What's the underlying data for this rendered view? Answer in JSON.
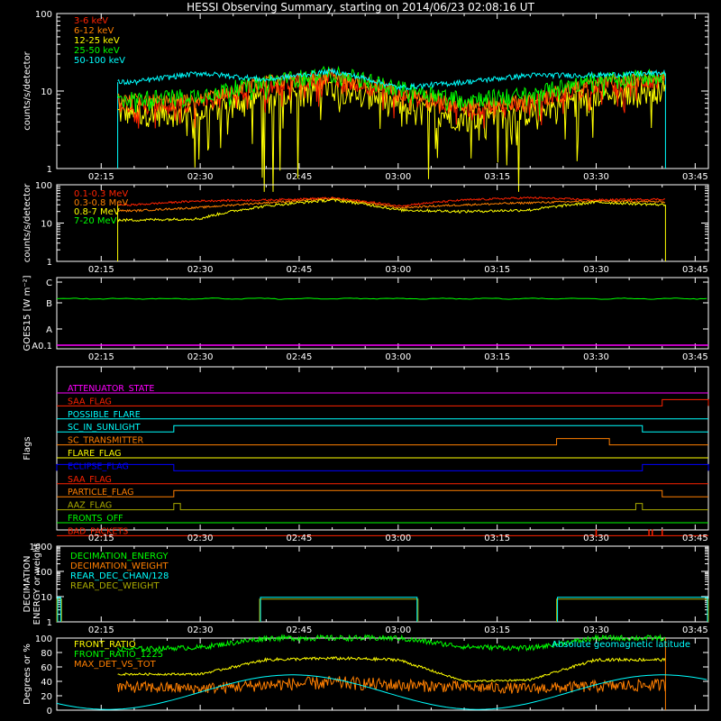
{
  "title": "HESSI Observing Summary, starting on 2014/06/23 02:08:16 UT",
  "time_ticks": [
    "02:15",
    "02:30",
    "02:45",
    "03:00",
    "03:15",
    "03:30",
    "03:45"
  ],
  "colors": {
    "red": "#ff2200",
    "orange": "#ff7f00",
    "yellow": "#ffff00",
    "green": "#00ff00",
    "cyan": "#00ffff",
    "magenta": "#ff00ff",
    "blue": "#0000ff",
    "olive": "#aaaa00",
    "axis": "#ffffff"
  },
  "chart_data": [
    {
      "id": "lo_energy",
      "type": "line",
      "ylabel": "counts/s/detector",
      "yscale": "log",
      "ylim": [
        1,
        100
      ],
      "ytick_labels": [
        "1",
        "10",
        "100"
      ],
      "series": [
        {
          "name": "3-6 keV",
          "color": "#ff2200"
        },
        {
          "name": "6-12 keV",
          "color": "#ff7f00"
        },
        {
          "name": "12-25 keV",
          "color": "#ffff00"
        },
        {
          "name": "25-50 keV",
          "color": "#00ff00"
        },
        {
          "name": "50-100 keV",
          "color": "#00ffff"
        }
      ],
      "approx_values_at": [
        "02:20",
        "02:30",
        "02:40",
        "02:50",
        "03:00",
        "03:10",
        "03:20",
        "03:30",
        "03:40"
      ],
      "approx_values": {
        "3-6 keV": [
          7,
          7,
          12,
          15,
          9,
          6,
          7,
          12,
          14
        ],
        "25-50 keV": [
          8,
          9,
          13,
          17,
          11,
          8,
          9,
          14,
          16
        ],
        "50-100 keV": [
          13,
          17,
          14,
          18,
          11,
          13,
          16,
          16,
          17
        ]
      }
    },
    {
      "id": "hi_energy",
      "type": "line",
      "ylabel": "counts/s/detector",
      "yscale": "log",
      "ylim": [
        1,
        100
      ],
      "ytick_labels": [
        "1",
        "10",
        "100"
      ],
      "series": [
        {
          "name": "0.1-0.3 MeV",
          "color": "#ff2200"
        },
        {
          "name": "0.3-0.8 MeV",
          "color": "#ff7f00"
        },
        {
          "name": "0.8-7 MeV",
          "color": "#ffff00"
        },
        {
          "name": "7-20 MeV",
          "color": "#00ff00"
        }
      ],
      "approx_values_at": [
        "02:20",
        "02:30",
        "02:40",
        "02:50",
        "03:00",
        "03:10",
        "03:20",
        "03:30",
        "03:40"
      ],
      "approx_values": {
        "0.1-0.3 MeV": [
          30,
          38,
          40,
          45,
          28,
          40,
          46,
          40,
          42
        ],
        "0.8-7 MeV": [
          12,
          13,
          28,
          40,
          22,
          20,
          22,
          35,
          30
        ]
      }
    },
    {
      "id": "goes",
      "type": "line",
      "ylabel": "GOES15 [W m⁻²]",
      "ytick_labels": [
        "A0.1",
        "A",
        "B",
        "C"
      ],
      "series": [
        {
          "color": "#00ff00",
          "level_class": "B",
          "level_fraction": 0.2
        },
        {
          "color": "#ff00ff",
          "level_class": "A0.1",
          "level_fraction": 0.0
        }
      ]
    },
    {
      "id": "flags",
      "type": "line",
      "ylabel": "Flags",
      "flags": [
        {
          "name": "ATTENUATOR_STATE",
          "color": "#ff00ff",
          "on_intervals": []
        },
        {
          "name": "SAA_FLAG",
          "color": "#ff2200",
          "on_intervals": [
            [
              "03:40",
              "03:48"
            ]
          ]
        },
        {
          "name": "POSSIBLE_FLARE",
          "color": "#00ffff",
          "on_intervals": []
        },
        {
          "name": "SC_IN_SUNLIGHT",
          "color": "#00ffff",
          "on_intervals": [
            [
              "02:26",
              "03:37"
            ]
          ]
        },
        {
          "name": "SC_TRANSMITTER",
          "color": "#ff7f00",
          "on_intervals": [
            [
              "03:24",
              "03:32"
            ]
          ]
        },
        {
          "name": "FLARE_FLAG",
          "color": "#ffff00",
          "on_intervals": []
        },
        {
          "name": "ECLIPSE_FLAG",
          "color": "#0000ff",
          "on_intervals": [
            [
              "02:08",
              "02:26"
            ],
            [
              "03:37",
              "03:48"
            ]
          ]
        },
        {
          "name": "SAA_FLAG",
          "color": "#ff2200",
          "on_intervals": []
        },
        {
          "name": "PARTICLE_FLAG",
          "color": "#ff7f00",
          "on_intervals": [
            [
              "02:26",
              "03:40"
            ]
          ]
        },
        {
          "name": "AAZ_FLAG",
          "color": "#aaaa00",
          "on_intervals": [
            [
              "02:26",
              "02:27"
            ],
            [
              "03:36",
              "03:37"
            ]
          ]
        },
        {
          "name": "FRONTS_OFF",
          "color": "#00ff00",
          "on_intervals": []
        },
        {
          "name": "BAD_PACKETS",
          "color": "#ff2200",
          "spikes": [
            "03:30",
            "03:38",
            "03:38.5",
            "03:40"
          ]
        }
      ]
    },
    {
      "id": "decimation",
      "type": "line",
      "ylabel": "DECIMATION ENERGY or weight",
      "yscale": "log",
      "ylim": [
        1,
        1000
      ],
      "ytick_labels": [
        "1",
        "10",
        "100",
        "1000"
      ],
      "series": [
        {
          "name": "DECIMATION_ENERGY",
          "color": "#00ff00"
        },
        {
          "name": "DECIMATION_WEIGHT",
          "color": "#ff7f00"
        },
        {
          "name": "REAR_DEC_CHAN/128",
          "color": "#00ffff"
        },
        {
          "name": "REAR_DEC_WEIGHT",
          "color": "#aaaa00"
        }
      ],
      "steps": [
        {
          "start": "02:08",
          "end": "02:09",
          "value": 8
        },
        {
          "start": "02:39",
          "end": "03:03",
          "value": 8
        },
        {
          "start": "03:24",
          "end": "03:48",
          "value": 8
        }
      ]
    },
    {
      "id": "ratios",
      "type": "line",
      "ylabel": "Degrees or %",
      "ylim": [
        0,
        100
      ],
      "ytick_labels": [
        "0",
        "20",
        "40",
        "60",
        "80",
        "100"
      ],
      "series": [
        {
          "name": "FRONT_RATIO",
          "color": "#ffff00"
        },
        {
          "name": "FRONT_RATIO_1225",
          "color": "#00ff00"
        },
        {
          "name": "MAX_DET_VS_TOT",
          "color": "#ff7f00"
        },
        {
          "name": "Absolute geomagnetic latitude",
          "color": "#00ffff"
        }
      ],
      "approx_values_at": [
        "02:20",
        "02:30",
        "02:40",
        "02:50",
        "03:00",
        "03:10",
        "03:20",
        "03:30",
        "03:40"
      ],
      "approx_values": {
        "FRONT_RATIO_1225": [
          85,
          87,
          100,
          100,
          100,
          88,
          86,
          100,
          100
        ],
        "FRONT_RATIO": [
          50,
          50,
          70,
          72,
          70,
          40,
          42,
          70,
          70
        ],
        "MAX_DET_VS_TOT": [
          32,
          30,
          35,
          38,
          35,
          32,
          30,
          33,
          35
        ],
        "Absolute geomagnetic latitude": [
          15,
          8,
          40,
          50,
          30,
          5,
          25,
          45,
          48
        ]
      }
    }
  ]
}
